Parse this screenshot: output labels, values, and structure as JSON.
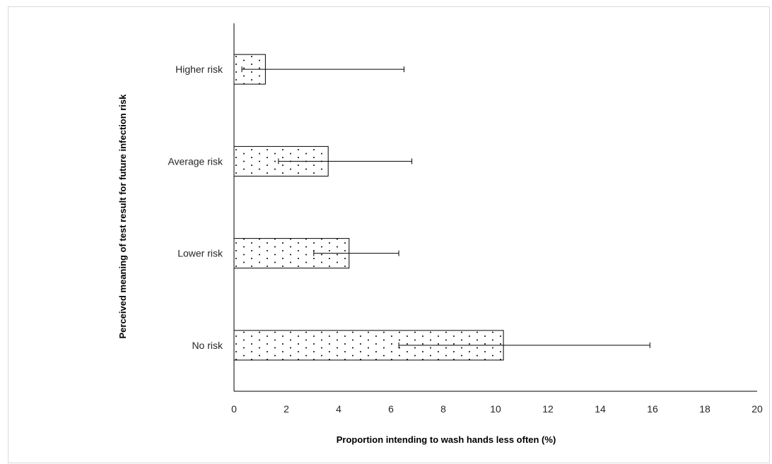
{
  "chart_data": {
    "type": "bar",
    "orientation": "horizontal",
    "title": "",
    "xlabel": "Proportion intending to wash hands less often (%)",
    "ylabel": "Perceived meaning of test result for future infection risk",
    "xlim": [
      0,
      20
    ],
    "xticks": [
      0,
      2,
      4,
      6,
      8,
      10,
      12,
      14,
      16,
      18,
      20
    ],
    "categories": [
      "Higher risk",
      "Average risk",
      "Lower risk",
      "No risk"
    ],
    "values": [
      1.2,
      3.6,
      4.4,
      10.3
    ],
    "error_low": [
      0.3,
      1.7,
      3.05,
      6.3
    ],
    "error_high": [
      6.5,
      6.8,
      6.3,
      15.9
    ],
    "grid": false,
    "bar_fill": "dotted pattern",
    "colors": {
      "bar_edge": "#000000",
      "axis": "#000000",
      "dot": "#000000"
    }
  }
}
